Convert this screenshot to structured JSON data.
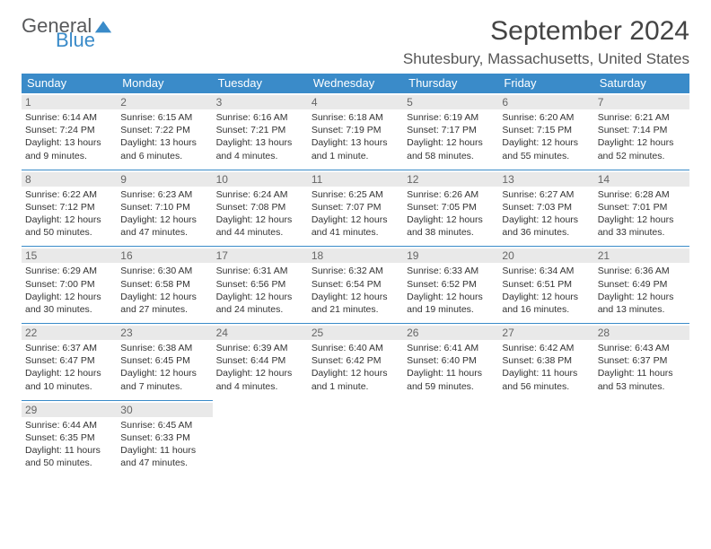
{
  "logo": {
    "word1": "General",
    "word2": "Blue"
  },
  "title": "September 2024",
  "location": "Shutesbury, Massachusetts, United States",
  "theme": {
    "header_bg": "#3a8bc9",
    "header_fg": "#ffffff",
    "daynum_bg": "#e9e9e9",
    "border": "#3a8bc9",
    "logo_gray": "#58595b",
    "logo_blue": "#3a8bc9"
  },
  "weekdays": [
    "Sunday",
    "Monday",
    "Tuesday",
    "Wednesday",
    "Thursday",
    "Friday",
    "Saturday"
  ],
  "days": [
    {
      "n": 1,
      "sr": "6:14 AM",
      "ss": "7:24 PM",
      "dl": "13 hours and 9 minutes."
    },
    {
      "n": 2,
      "sr": "6:15 AM",
      "ss": "7:22 PM",
      "dl": "13 hours and 6 minutes."
    },
    {
      "n": 3,
      "sr": "6:16 AM",
      "ss": "7:21 PM",
      "dl": "13 hours and 4 minutes."
    },
    {
      "n": 4,
      "sr": "6:18 AM",
      "ss": "7:19 PM",
      "dl": "13 hours and 1 minute."
    },
    {
      "n": 5,
      "sr": "6:19 AM",
      "ss": "7:17 PM",
      "dl": "12 hours and 58 minutes."
    },
    {
      "n": 6,
      "sr": "6:20 AM",
      "ss": "7:15 PM",
      "dl": "12 hours and 55 minutes."
    },
    {
      "n": 7,
      "sr": "6:21 AM",
      "ss": "7:14 PM",
      "dl": "12 hours and 52 minutes."
    },
    {
      "n": 8,
      "sr": "6:22 AM",
      "ss": "7:12 PM",
      "dl": "12 hours and 50 minutes."
    },
    {
      "n": 9,
      "sr": "6:23 AM",
      "ss": "7:10 PM",
      "dl": "12 hours and 47 minutes."
    },
    {
      "n": 10,
      "sr": "6:24 AM",
      "ss": "7:08 PM",
      "dl": "12 hours and 44 minutes."
    },
    {
      "n": 11,
      "sr": "6:25 AM",
      "ss": "7:07 PM",
      "dl": "12 hours and 41 minutes."
    },
    {
      "n": 12,
      "sr": "6:26 AM",
      "ss": "7:05 PM",
      "dl": "12 hours and 38 minutes."
    },
    {
      "n": 13,
      "sr": "6:27 AM",
      "ss": "7:03 PM",
      "dl": "12 hours and 36 minutes."
    },
    {
      "n": 14,
      "sr": "6:28 AM",
      "ss": "7:01 PM",
      "dl": "12 hours and 33 minutes."
    },
    {
      "n": 15,
      "sr": "6:29 AM",
      "ss": "7:00 PM",
      "dl": "12 hours and 30 minutes."
    },
    {
      "n": 16,
      "sr": "6:30 AM",
      "ss": "6:58 PM",
      "dl": "12 hours and 27 minutes."
    },
    {
      "n": 17,
      "sr": "6:31 AM",
      "ss": "6:56 PM",
      "dl": "12 hours and 24 minutes."
    },
    {
      "n": 18,
      "sr": "6:32 AM",
      "ss": "6:54 PM",
      "dl": "12 hours and 21 minutes."
    },
    {
      "n": 19,
      "sr": "6:33 AM",
      "ss": "6:52 PM",
      "dl": "12 hours and 19 minutes."
    },
    {
      "n": 20,
      "sr": "6:34 AM",
      "ss": "6:51 PM",
      "dl": "12 hours and 16 minutes."
    },
    {
      "n": 21,
      "sr": "6:36 AM",
      "ss": "6:49 PM",
      "dl": "12 hours and 13 minutes."
    },
    {
      "n": 22,
      "sr": "6:37 AM",
      "ss": "6:47 PM",
      "dl": "12 hours and 10 minutes."
    },
    {
      "n": 23,
      "sr": "6:38 AM",
      "ss": "6:45 PM",
      "dl": "12 hours and 7 minutes."
    },
    {
      "n": 24,
      "sr": "6:39 AM",
      "ss": "6:44 PM",
      "dl": "12 hours and 4 minutes."
    },
    {
      "n": 25,
      "sr": "6:40 AM",
      "ss": "6:42 PM",
      "dl": "12 hours and 1 minute."
    },
    {
      "n": 26,
      "sr": "6:41 AM",
      "ss": "6:40 PM",
      "dl": "11 hours and 59 minutes."
    },
    {
      "n": 27,
      "sr": "6:42 AM",
      "ss": "6:38 PM",
      "dl": "11 hours and 56 minutes."
    },
    {
      "n": 28,
      "sr": "6:43 AM",
      "ss": "6:37 PM",
      "dl": "11 hours and 53 minutes."
    },
    {
      "n": 29,
      "sr": "6:44 AM",
      "ss": "6:35 PM",
      "dl": "11 hours and 50 minutes."
    },
    {
      "n": 30,
      "sr": "6:45 AM",
      "ss": "6:33 PM",
      "dl": "11 hours and 47 minutes."
    }
  ],
  "labels": {
    "sunrise": "Sunrise:",
    "sunset": "Sunset:",
    "daylight": "Daylight:"
  }
}
